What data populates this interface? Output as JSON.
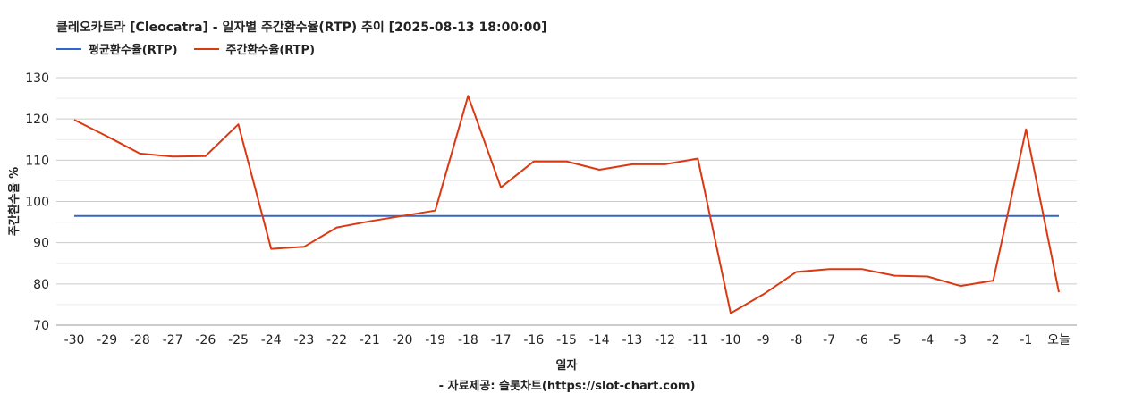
{
  "chart_data": {
    "type": "line",
    "title": "클레오카트라 [Cleocatra] - 일자별 주간환수율(RTP) 추이 [2025-08-13 18:00:00]",
    "xlabel": "일자",
    "ylabel": "주간환수율 %",
    "source": "- 자료제공: 슬롯차트(https://slot-chart.com)",
    "categories": [
      "-30",
      "-29",
      "-28",
      "-27",
      "-26",
      "-25",
      "-24",
      "-23",
      "-22",
      "-21",
      "-20",
      "-19",
      "-18",
      "-17",
      "-16",
      "-15",
      "-14",
      "-13",
      "-12",
      "-11",
      "-10",
      "-9",
      "-8",
      "-7",
      "-6",
      "-5",
      "-4",
      "-3",
      "-2",
      "-1",
      "오늘"
    ],
    "ylim": [
      70,
      130
    ],
    "yticks": [
      70,
      80,
      90,
      100,
      110,
      120,
      130
    ],
    "grid": true,
    "legend_position": "top-left",
    "series": [
      {
        "name": "평균환수율(RTP)",
        "color": "#3366cc",
        "values": [
          96.5,
          96.5,
          96.5,
          96.5,
          96.5,
          96.5,
          96.5,
          96.5,
          96.5,
          96.5,
          96.5,
          96.5,
          96.5,
          96.5,
          96.5,
          96.5,
          96.5,
          96.5,
          96.5,
          96.5,
          96.5,
          96.5,
          96.5,
          96.5,
          96.5,
          96.5,
          96.5,
          96.5,
          96.5,
          96.5,
          96.5
        ]
      },
      {
        "name": "주간환수율(RTP)",
        "color": "#dc3912",
        "values": [
          119.8,
          115.8,
          111.6,
          110.9,
          111.0,
          118.7,
          88.5,
          89.0,
          93.7,
          95.2,
          96.5,
          97.8,
          125.6,
          103.4,
          109.7,
          109.7,
          107.7,
          109.0,
          109.0,
          110.4,
          72.9,
          77.5,
          82.9,
          83.6,
          83.6,
          82.0,
          81.8,
          79.5,
          80.8,
          117.5,
          78.0
        ]
      }
    ]
  }
}
